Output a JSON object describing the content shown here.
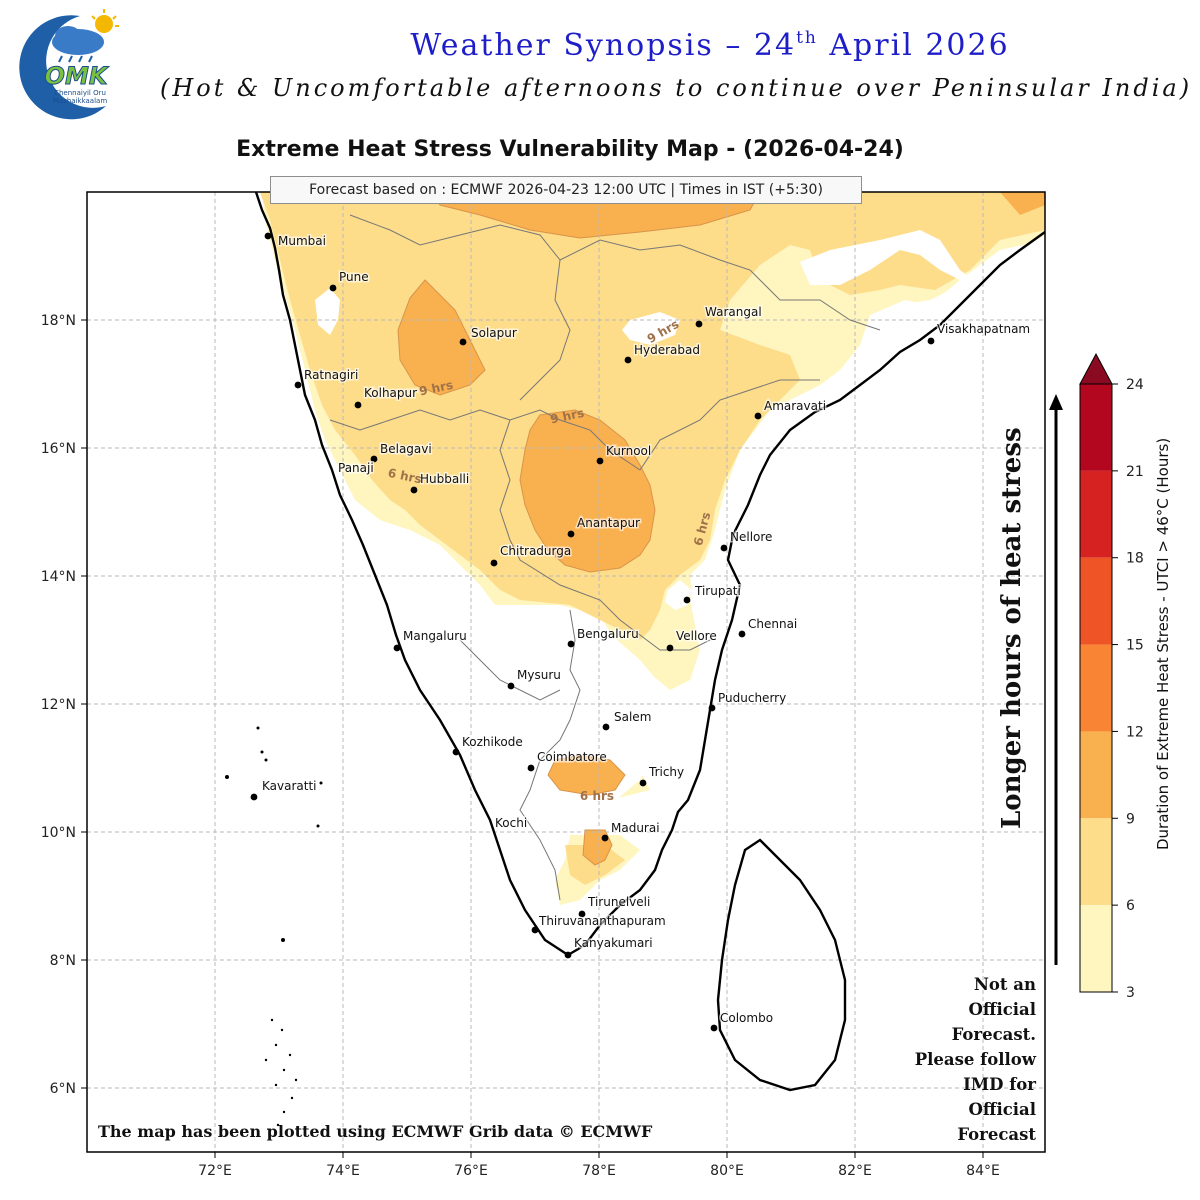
{
  "header": {
    "logo_text": "OMK",
    "logo_subtitle_1": "Chennaiyil Oru",
    "logo_subtitle_2": "Mazhaikkaalam",
    "title_main": "Weather Synopsis – 24",
    "title_sup": "th",
    "title_end": " April 2026",
    "subtitle": "(Hot & Uncomfortable afternoons to continue over Peninsular India)"
  },
  "map": {
    "title": "Extreme Heat Stress Vulnerability Map - (2026-04-24)",
    "forecast_note": "Forecast based on : ECMWF 2026-04-23 12:00 UTC | Times in IST (+5:30)",
    "lon_ticks": [
      "72°E",
      "74°E",
      "76°E",
      "78°E",
      "80°E",
      "82°E",
      "84°E"
    ],
    "lat_ticks": [
      "18°N",
      "16°N",
      "14°N",
      "12°N",
      "10°N",
      "8°N",
      "6°N"
    ],
    "cities": [
      "Mumbai",
      "Pune",
      "Solapur",
      "Warangal",
      "Visakhapatnam",
      "Hyderabad",
      "Ratnagiri",
      "Kolhapur",
      "Amaravati",
      "Belagavi",
      "Kurnool",
      "Panaji",
      "Hubballi",
      "Anantapur",
      "Nellore",
      "Chitradurga",
      "Tirupati",
      "Mangaluru",
      "Bengaluru",
      "Chennai",
      "Vellore",
      "Mysuru",
      "Puducherry",
      "Salem",
      "Kozhikode",
      "Coimbatore",
      "Trichy",
      "Kavaratti",
      "Kochi",
      "Madurai",
      "Tirunelveli",
      "Thiruvananthapuram",
      "Kanyakumari",
      "Colombo"
    ],
    "contour_labels": [
      "9 hrs",
      "9 hrs",
      "6 hrs",
      "9 hrs",
      "6 hrs",
      "6 hrs"
    ],
    "colors": {
      "level_3_6": "#fff5bf",
      "level_6_9": "#fddc8a",
      "level_9_12": "#f9b04f",
      "level_12_15": "#f98434",
      "level_15_18": "#ef5427",
      "level_18_21": "#d72222",
      "level_21_24": "#b2071f",
      "above_24": "#8a0a22"
    }
  },
  "colorbar": {
    "ticks": [
      "24",
      "21",
      "18",
      "15",
      "12",
      "9",
      "6",
      "3"
    ],
    "label": "Duration of Extreme Heat Stress - UTCI > 46°C (Hours)"
  },
  "annotations": {
    "arrow_text": "Longer hours of heat stress",
    "disclaimer": [
      "Not an",
      "Official",
      "Forecast.",
      "Please follow",
      "IMD for",
      "Official",
      "Forecast"
    ],
    "credit": "The map has been plotted using ECMWF Grib data © ECMWF"
  }
}
